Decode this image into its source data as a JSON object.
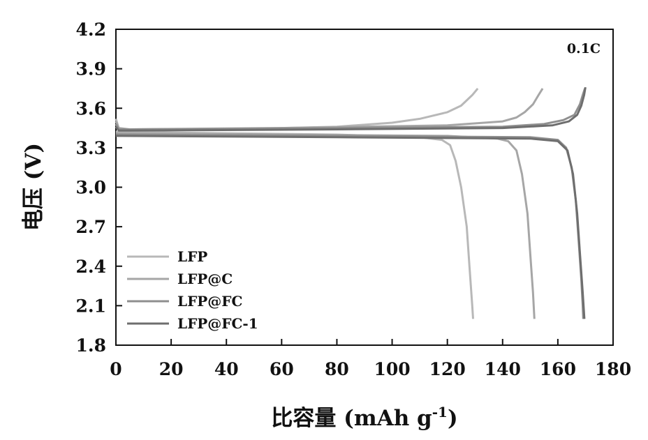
{
  "chart_data": {
    "type": "line",
    "title": "",
    "annotation": "0.1C",
    "xlabel": "比容量 (mAh g",
    "xlabel_sup": "-1",
    "xlabel_close": ")",
    "ylabel": "电压 (V)",
    "xlim": [
      0,
      180
    ],
    "ylim": [
      1.8,
      4.2
    ],
    "xticks": [
      0,
      20,
      40,
      60,
      80,
      100,
      120,
      140,
      160,
      180
    ],
    "yticks": [
      "1.8",
      "2.1",
      "2.4",
      "2.7",
      "3.0",
      "3.3",
      "3.6",
      "3.9",
      "4.2"
    ],
    "grid": false,
    "legend_position": "bottom-left",
    "series": [
      {
        "name": "LFP",
        "color": "#b8b8b8",
        "charge": [
          [
            0,
            3.52
          ],
          [
            1,
            3.45
          ],
          [
            5,
            3.43
          ],
          [
            40,
            3.44
          ],
          [
            80,
            3.46
          ],
          [
            100,
            3.49
          ],
          [
            110,
            3.52
          ],
          [
            120,
            3.57
          ],
          [
            125,
            3.62
          ],
          [
            129,
            3.7
          ],
          [
            131,
            3.75
          ]
        ],
        "discharge": [
          [
            0,
            3.42
          ],
          [
            2,
            3.42
          ],
          [
            40,
            3.41
          ],
          [
            80,
            3.4
          ],
          [
            110,
            3.38
          ],
          [
            118,
            3.36
          ],
          [
            121,
            3.32
          ],
          [
            123,
            3.2
          ],
          [
            125,
            3.0
          ],
          [
            127,
            2.7
          ],
          [
            128,
            2.4
          ],
          [
            129,
            2.1
          ],
          [
            129.3,
            2.0
          ]
        ]
      },
      {
        "name": "LFP@C",
        "color": "#a6a6a6",
        "charge": [
          [
            0,
            3.5
          ],
          [
            1,
            3.45
          ],
          [
            5,
            3.44
          ],
          [
            60,
            3.45
          ],
          [
            120,
            3.47
          ],
          [
            140,
            3.5
          ],
          [
            145,
            3.53
          ],
          [
            148,
            3.57
          ],
          [
            151,
            3.63
          ],
          [
            153,
            3.7
          ],
          [
            154.5,
            3.75
          ]
        ],
        "discharge": [
          [
            0,
            3.41
          ],
          [
            2,
            3.41
          ],
          [
            60,
            3.4
          ],
          [
            120,
            3.39
          ],
          [
            138,
            3.37
          ],
          [
            142,
            3.35
          ],
          [
            145,
            3.28
          ],
          [
            147,
            3.1
          ],
          [
            149,
            2.8
          ],
          [
            150,
            2.5
          ],
          [
            151,
            2.2
          ],
          [
            151.5,
            2.0
          ]
        ]
      },
      {
        "name": "LFP@FC",
        "color": "#8f8f8f",
        "charge": [
          [
            0,
            3.48
          ],
          [
            1,
            3.44
          ],
          [
            5,
            3.44
          ],
          [
            80,
            3.45
          ],
          [
            140,
            3.46
          ],
          [
            155,
            3.48
          ],
          [
            162,
            3.51
          ],
          [
            166,
            3.55
          ],
          [
            168,
            3.63
          ],
          [
            169,
            3.7
          ],
          [
            169.8,
            3.75
          ]
        ],
        "discharge": [
          [
            0,
            3.4
          ],
          [
            2,
            3.4
          ],
          [
            80,
            3.39
          ],
          [
            150,
            3.38
          ],
          [
            160,
            3.36
          ],
          [
            163,
            3.3
          ],
          [
            165,
            3.15
          ],
          [
            166.5,
            2.9
          ],
          [
            167.5,
            2.6
          ],
          [
            168.5,
            2.3
          ],
          [
            169,
            2.1
          ],
          [
            169.2,
            2.0
          ]
        ]
      },
      {
        "name": "LFP@FC-1",
        "color": "#6e6e6e",
        "charge": [
          [
            0,
            3.46
          ],
          [
            1,
            3.43
          ],
          [
            5,
            3.43
          ],
          [
            80,
            3.44
          ],
          [
            140,
            3.45
          ],
          [
            158,
            3.47
          ],
          [
            164,
            3.5
          ],
          [
            167,
            3.55
          ],
          [
            168.5,
            3.62
          ],
          [
            169.5,
            3.7
          ],
          [
            170,
            3.76
          ]
        ],
        "discharge": [
          [
            0,
            3.39
          ],
          [
            2,
            3.39
          ],
          [
            80,
            3.38
          ],
          [
            150,
            3.37
          ],
          [
            160,
            3.35
          ],
          [
            163.5,
            3.28
          ],
          [
            165.5,
            3.1
          ],
          [
            167,
            2.8
          ],
          [
            168,
            2.5
          ],
          [
            169,
            2.2
          ],
          [
            169.6,
            2.0
          ]
        ]
      }
    ]
  }
}
